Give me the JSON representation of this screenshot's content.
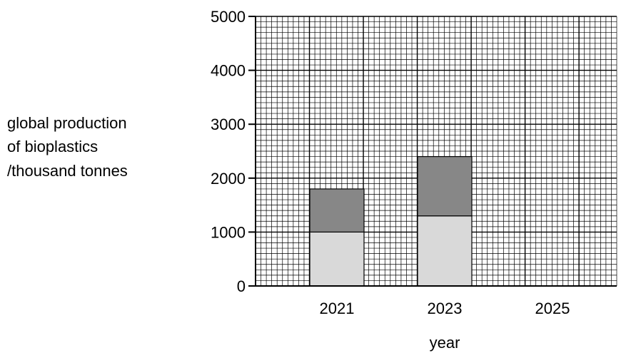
{
  "chart_data": {
    "type": "bar",
    "stacked": true,
    "ylabel_lines": [
      "global production",
      "of bioplastics",
      "/thousand tonnes"
    ],
    "xlabel": "year",
    "categories": [
      "2021",
      "2023",
      "2025"
    ],
    "series": [
      {
        "values": [
          1000,
          1300,
          null
        ],
        "color": "#d9d9d9"
      },
      {
        "values": [
          800,
          1100,
          null
        ],
        "color": "#878787"
      }
    ],
    "ylim": [
      0,
      5000
    ],
    "yticks": [
      0,
      1000,
      2000,
      3000,
      4000,
      5000
    ],
    "grid": true
  }
}
